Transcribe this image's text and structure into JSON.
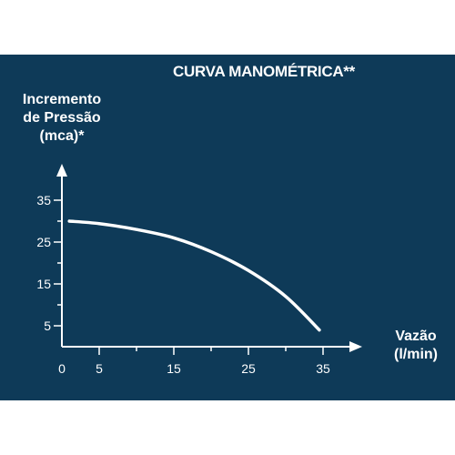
{
  "chart_data": {
    "type": "line",
    "title": "CURVA MANOMÉTRICA**",
    "ylabel": [
      "Incremento",
      "de Pressão",
      "(mca)*"
    ],
    "xlabel": [
      "Vazão",
      "(l/min)"
    ],
    "xlim": [
      0,
      37
    ],
    "ylim": [
      0,
      40
    ],
    "x_tick_labels": [
      "0",
      "5",
      "15",
      "25",
      "35"
    ],
    "x_ticks": [
      0,
      5,
      15,
      25,
      35
    ],
    "x_minor_ticks": [
      5,
      10,
      15,
      20,
      25,
      30,
      35
    ],
    "y_tick_labels": [
      "5",
      "15",
      "25",
      "35"
    ],
    "y_ticks": [
      5,
      15,
      25,
      35
    ],
    "y_minor_ticks": [
      5,
      10,
      15,
      20,
      25,
      30,
      35
    ],
    "grid": false,
    "series": [
      {
        "x": [
          1,
          5,
          10,
          15,
          20,
          25,
          30,
          34.5
        ],
        "y": [
          30,
          29.4,
          28,
          26,
          22.7,
          18.2,
          12,
          4
        ]
      }
    ]
  },
  "colors": {
    "background": "#0e3a58",
    "foreground": "#ffffff",
    "page": "#ffffff"
  }
}
